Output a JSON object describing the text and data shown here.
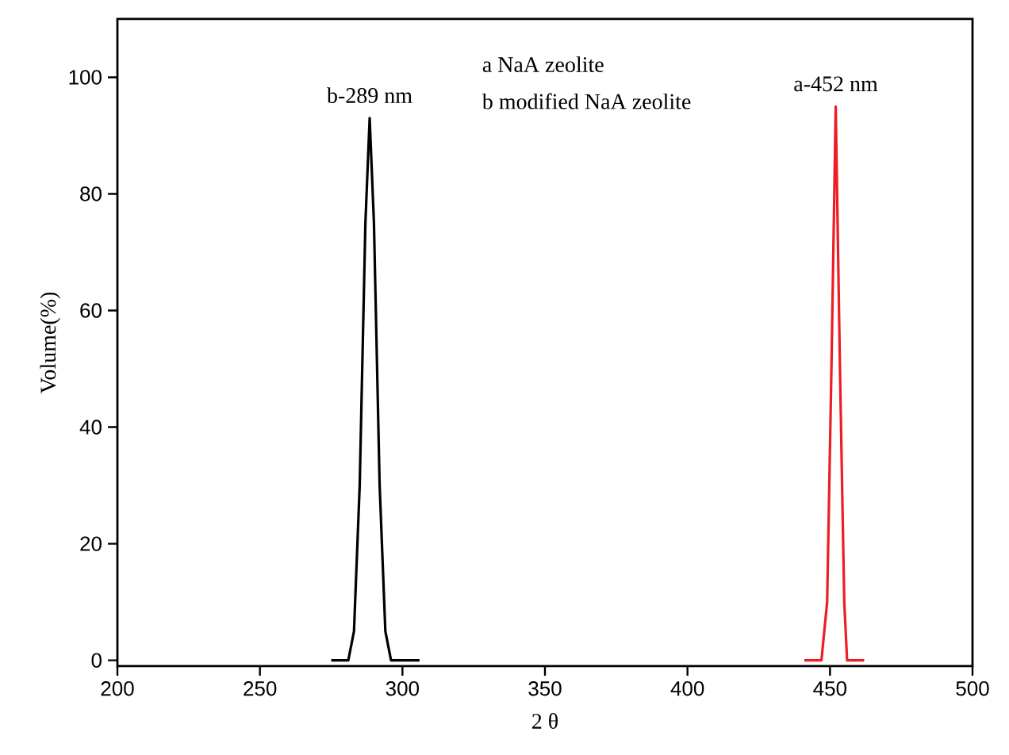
{
  "chart_data": {
    "type": "line",
    "xlabel": "2 θ",
    "ylabel": "Volume(%)",
    "xlim": [
      200,
      500
    ],
    "ylim": [
      -1,
      110
    ],
    "xticks": [
      200,
      250,
      300,
      350,
      400,
      450,
      500
    ],
    "yticks": [
      0,
      20,
      40,
      60,
      80,
      100
    ],
    "grid": false,
    "marker": "none",
    "line_style": "solid",
    "series": [
      {
        "color": "#000000",
        "x": [
          275,
          281,
          283,
          285,
          287,
          288.5,
          290,
          292,
          294,
          296,
          306
        ],
        "values": [
          0,
          0,
          5,
          30,
          75,
          93,
          75,
          30,
          5,
          0,
          0
        ]
      },
      {
        "color": "#ee1c25",
        "x": [
          441,
          447,
          449,
          450.5,
          452,
          453.5,
          455,
          456,
          462
        ],
        "values": [
          0,
          0,
          10,
          50,
          95,
          50,
          10,
          0,
          0
        ]
      }
    ],
    "annotations": [
      {
        "text": "b-289 nm",
        "x": 288.5,
        "y": 93
      },
      {
        "text": "a-452 nm",
        "x": 452,
        "y": 95
      },
      "a NaA zeolite",
      "b modified NaA zeolite"
    ]
  }
}
